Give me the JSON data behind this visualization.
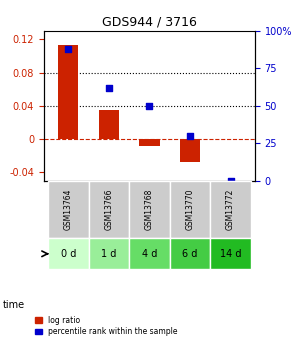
{
  "title": "GDS944 / 3716",
  "samples": [
    "GSM13764",
    "GSM13766",
    "GSM13768",
    "GSM13770",
    "GSM13772"
  ],
  "time_labels": [
    "0 d",
    "1 d",
    "4 d",
    "6 d",
    "14 d"
  ],
  "log_ratios": [
    0.113,
    0.035,
    -0.008,
    -0.028,
    0.0
  ],
  "percentile_ranks": [
    88,
    62,
    50,
    30,
    0
  ],
  "bar_color": "#cc2200",
  "dot_color": "#0000cc",
  "ylim_left": [
    -0.05,
    0.13
  ],
  "ylim_right": [
    0,
    100
  ],
  "yticks_left": [
    -0.04,
    0.0,
    0.04,
    0.08,
    0.12
  ],
  "yticks_right": [
    0,
    25,
    50,
    75,
    100
  ],
  "ytick_labels_left": [
    "-0.04",
    "0",
    "0.04",
    "0.08",
    "0.12"
  ],
  "ytick_labels_right": [
    "0",
    "25",
    "50",
    "75",
    "100%"
  ],
  "hline_y": [
    0.04,
    0.08
  ],
  "zero_line_y": 0.0,
  "sample_bg_color": "#cccccc",
  "time_bg_colors": [
    "#ccffcc",
    "#99ee99",
    "#66dd66",
    "#44cc44",
    "#22bb22"
  ],
  "legend_log_ratio": "log ratio",
  "legend_percentile": "percentile rank within the sample",
  "bar_width": 0.5
}
